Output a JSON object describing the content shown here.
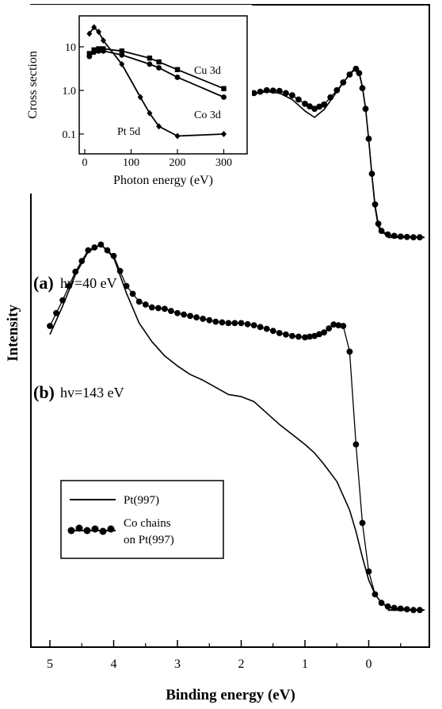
{
  "chart_data": [
    {
      "type": "line",
      "title": "",
      "xlabel": "Binding energy (eV)",
      "ylabel": "Intensity",
      "xlim": [
        5.2,
        -0.9
      ],
      "x_reversed": true,
      "x_ticks": [
        5,
        4,
        3,
        2,
        1,
        0
      ],
      "x_tick_labels": [
        "5",
        "4",
        "3",
        "2",
        "1",
        "0"
      ],
      "y_ticks_shown": false,
      "grid": false,
      "legend_position": "bottom-left",
      "legend": [
        {
          "label": "Pt(997)",
          "style": "line"
        },
        {
          "label_line1": "Co chains",
          "label_line2": "on Pt(997)",
          "style": "line-with-filled-circles"
        }
      ],
      "annotations": [
        {
          "id": "a",
          "letter": "(a)",
          "text": "hv=40 eV"
        },
        {
          "id": "b",
          "letter": "(b)",
          "text": "hv=143 eV"
        }
      ],
      "panels": [
        {
          "id": "a",
          "photon_energy": "hv=40 eV",
          "baseline_range": [
            -0.3,
            -0.8
          ],
          "series": [
            {
              "name": "Pt(997)",
              "style": "line",
              "x": [
                5.0,
                4.8,
                4.6,
                4.4,
                4.2,
                4.0,
                3.8,
                3.6,
                3.4,
                3.2,
                3.0,
                2.8,
                2.6,
                2.4,
                2.2,
                2.0,
                1.8,
                1.6,
                1.4,
                1.2,
                1.0,
                0.85,
                0.7,
                0.5,
                0.3,
                0.2,
                0.15,
                0.1,
                0.05,
                0.0,
                -0.05,
                -0.1,
                -0.15,
                -0.2,
                -0.3,
                -0.4,
                -0.5,
                -0.6,
                -0.7,
                -0.8
              ],
              "y": [
                -2.2,
                0.8,
                3.8,
                6.2,
                7.2,
                5.8,
                2.8,
                -0.4,
                -2.2,
                -0.8,
                0.8,
                1.6,
                2.3,
                3.6,
                5.8,
                8.6,
                10.6,
                11.2,
                10.8,
                9.0,
                5.8,
                4.0,
                6.2,
                11.2,
                16.2,
                18.0,
                16.6,
                12.6,
                6.6,
                -2.4,
                -12.2,
                -21.2,
                -26.6,
                -28.2,
                -29.0,
                -29.2,
                -29.3,
                -29.4,
                -29.5,
                -29.6
              ]
            },
            {
              "name": "Co chains on Pt(997)",
              "style": "line-with-filled-circles",
              "x": [
                5.0,
                4.8,
                4.6,
                4.4,
                4.2,
                4.0,
                3.8,
                3.6,
                3.4,
                3.2,
                3.0,
                2.8,
                2.6,
                2.4,
                2.2,
                2.0,
                1.8,
                1.6,
                1.4,
                1.2,
                1.0,
                0.85,
                0.7,
                0.5,
                0.3,
                0.2,
                0.15,
                0.1,
                0.05,
                0.0,
                -0.05,
                -0.1,
                -0.15,
                -0.2,
                -0.3,
                -0.4,
                -0.5,
                -0.6,
                -0.7,
                -0.8
              ],
              "y": [
                0.2,
                1.8,
                4.6,
                6.8,
                7.4,
                6.2,
                3.0,
                0.0,
                -1.6,
                -0.2,
                1.3,
                2.0,
                2.8,
                4.4,
                6.4,
                9.0,
                10.8,
                11.6,
                11.4,
                10.2,
                7.8,
                6.4,
                7.6,
                11.6,
                16.0,
                17.6,
                16.4,
                12.2,
                6.4,
                -2.0,
                -11.8,
                -20.4,
                -25.8,
                -27.8,
                -28.8,
                -29.2,
                -29.4,
                -29.5,
                -29.6,
                -29.6
              ]
            }
          ]
        },
        {
          "id": "b",
          "photon_energy": "hv=143 eV",
          "baseline_range": [
            -0.3,
            -0.8
          ],
          "series": [
            {
              "name": "Pt(997)",
              "style": "line",
              "x": [
                5.0,
                4.8,
                4.6,
                4.4,
                4.2,
                4.0,
                3.8,
                3.6,
                3.4,
                3.2,
                3.0,
                2.8,
                2.6,
                2.4,
                2.2,
                2.0,
                1.8,
                1.6,
                1.4,
                1.2,
                1.0,
                0.85,
                0.7,
                0.5,
                0.3,
                0.2,
                0.1,
                0.0,
                -0.1,
                -0.2,
                -0.3,
                -0.4,
                -0.5,
                -0.6,
                -0.7,
                -0.8
              ],
              "y": [
                -2.2,
                1.8,
                6.2,
                9.4,
                10.4,
                8.6,
                3.6,
                -0.6,
                -3.2,
                -5.2,
                -6.6,
                -7.8,
                -8.6,
                -9.6,
                -10.6,
                -10.9,
                -11.6,
                -13.2,
                -14.8,
                -16.2,
                -17.6,
                -18.8,
                -20.4,
                -22.8,
                -26.8,
                -29.8,
                -33.4,
                -36.6,
                -38.6,
                -39.8,
                -40.4,
                -40.6,
                -40.7,
                -40.8,
                -40.8,
                -40.8
              ]
            },
            {
              "name": "Co chains on Pt(997)",
              "style": "line-with-filled-circles",
              "x": [
                5.0,
                4.8,
                4.6,
                4.4,
                4.2,
                4.0,
                3.8,
                3.6,
                3.4,
                3.2,
                3.0,
                2.8,
                2.6,
                2.4,
                2.2,
                2.0,
                1.8,
                1.6,
                1.4,
                1.2,
                1.0,
                0.85,
                0.7,
                0.55,
                0.4,
                0.3,
                0.2,
                0.1,
                0.0,
                -0.1,
                -0.2,
                -0.3,
                -0.4,
                -0.5,
                -0.6,
                -0.7,
                -0.8
              ],
              "y": [
                -1.0,
                2.6,
                6.6,
                9.6,
                10.4,
                8.8,
                4.6,
                2.4,
                1.6,
                1.4,
                0.8,
                0.4,
                0.0,
                -0.4,
                -0.6,
                -0.6,
                -0.9,
                -1.4,
                -2.0,
                -2.4,
                -2.6,
                -2.4,
                -1.9,
                -0.8,
                -1.0,
                -4.6,
                -17.6,
                -28.6,
                -35.4,
                -38.6,
                -39.8,
                -40.3,
                -40.5,
                -40.6,
                -40.7,
                -40.8,
                -40.8
              ]
            }
          ]
        }
      ]
    },
    {
      "type": "line",
      "title": "",
      "inset": true,
      "xlabel": "Photon energy (eV)",
      "ylabel": "Cross section",
      "xlim": [
        0,
        320
      ],
      "x_ticks": [
        0,
        100,
        200,
        300
      ],
      "ylim": [
        0.06,
        40
      ],
      "y_scale": "log",
      "y_ticks": [
        0.1,
        1.0,
        10
      ],
      "y_tick_labels": [
        "0.1",
        "1.0",
        "10"
      ],
      "grid": false,
      "series": [
        {
          "name": "Cu 3d",
          "marker": "square",
          "x": [
            10,
            20,
            30,
            40,
            80,
            140,
            160,
            200,
            300
          ],
          "y": [
            7,
            8.5,
            9,
            9,
            8,
            5.5,
            4.5,
            3,
            1.1
          ]
        },
        {
          "name": "Co 3d",
          "marker": "circle",
          "x": [
            10,
            20,
            30,
            40,
            80,
            140,
            160,
            200,
            300
          ],
          "y": [
            6,
            7.5,
            8,
            8,
            6.5,
            4,
            3.3,
            2,
            0.7
          ]
        },
        {
          "name": "Pt 5d",
          "marker": "diamond",
          "x": [
            10,
            20,
            30,
            40,
            80,
            120,
            140,
            160,
            200,
            300
          ],
          "y": [
            20,
            28,
            22,
            14,
            4,
            0.7,
            0.3,
            0.15,
            0.09,
            0.1
          ]
        }
      ]
    }
  ]
}
